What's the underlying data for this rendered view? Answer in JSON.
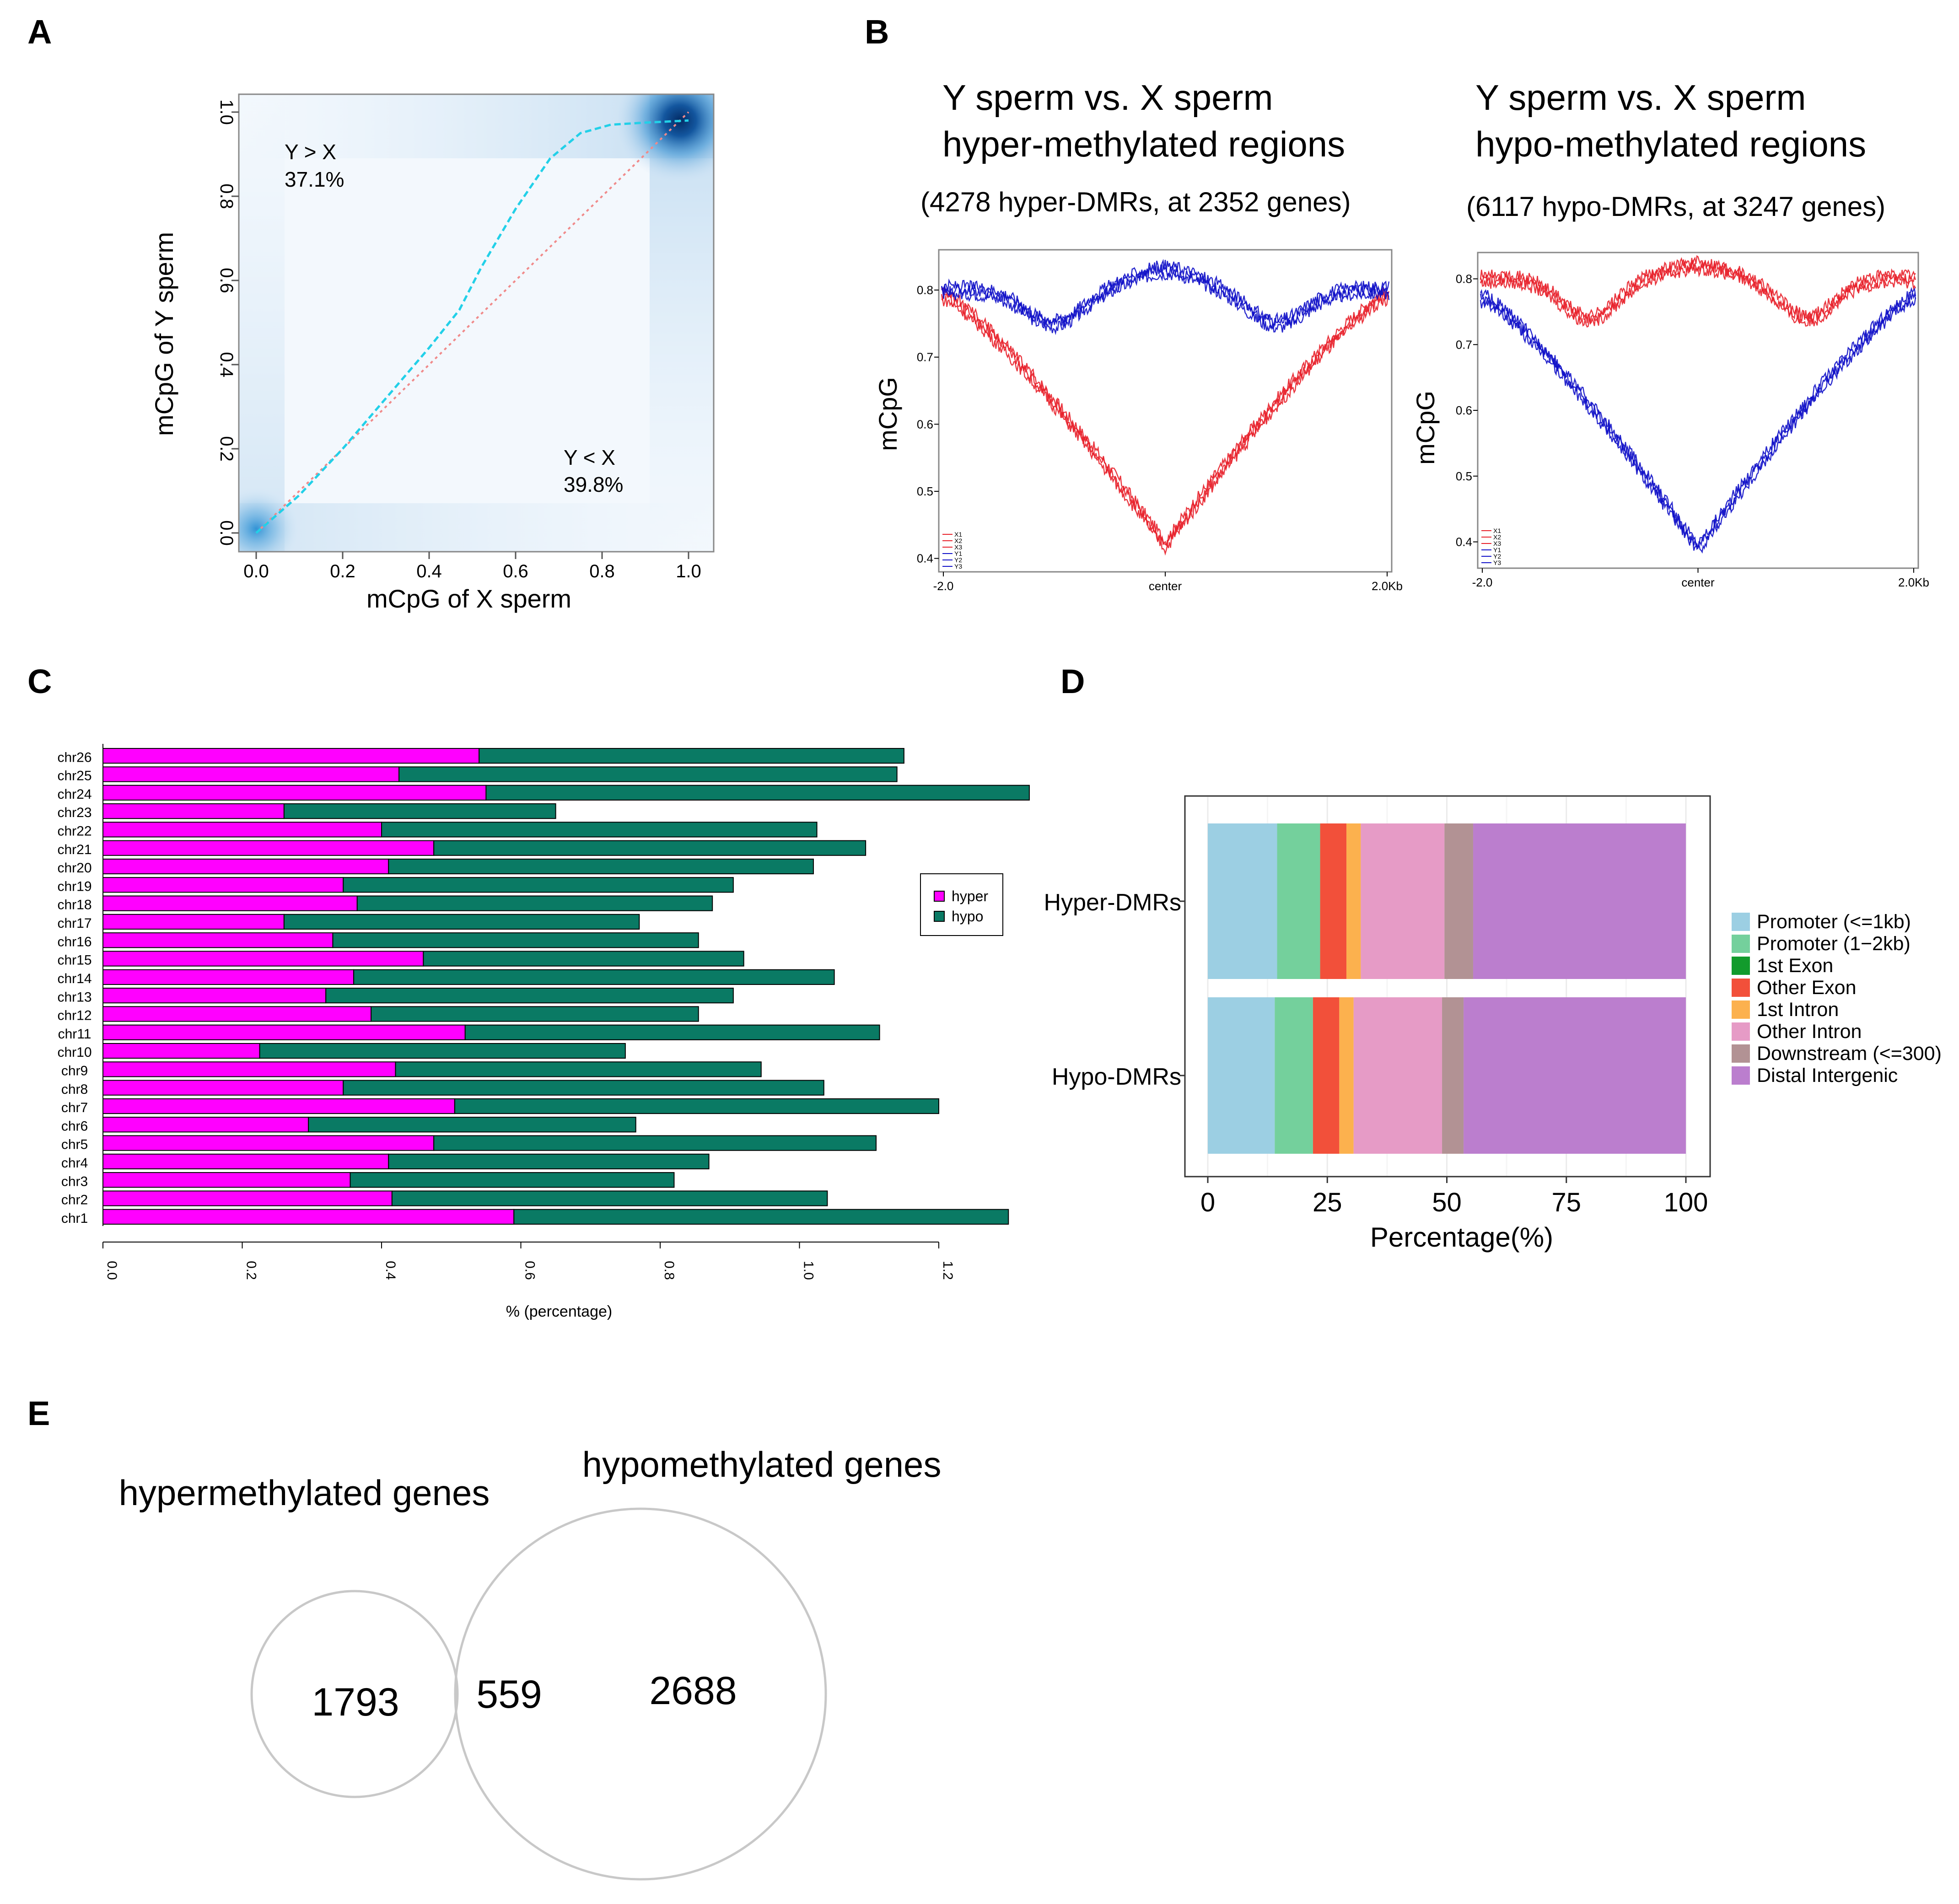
{
  "panels": {
    "A": {
      "label": "A"
    },
    "B": {
      "label": "B"
    },
    "C": {
      "label": "C"
    },
    "D": {
      "label": "D"
    },
    "E": {
      "label": "E"
    }
  },
  "chart_data": [
    {
      "panel": "A",
      "type": "heatmap",
      "title": "",
      "xlabel": "mCpG of X sperm",
      "ylabel": "mCpG of Y sperm",
      "xlim": [
        0,
        1
      ],
      "ylim": [
        0,
        1
      ],
      "xticks": [
        "0.0",
        "0.2",
        "0.4",
        "0.6",
        "0.8",
        "1.0"
      ],
      "yticks": [
        "0.0",
        "0.2",
        "0.4",
        "0.6",
        "0.8",
        "1.0"
      ],
      "annotations": [
        {
          "name": "y-greater-x",
          "line1": "Y > X",
          "line2": "37.1%"
        },
        {
          "name": "y-less-x",
          "line1": "Y < X",
          "line2": "39.8%"
        }
      ],
      "density_hotspots": [
        {
          "x": 0.98,
          "y": 0.98,
          "strength": 1.0
        },
        {
          "x": 0.0,
          "y": 0.01,
          "strength": 0.55
        }
      ],
      "smooth_curve": {
        "x": [
          0,
          0.1,
          0.2,
          0.3,
          0.4,
          0.47,
          0.52,
          0.6,
          0.68,
          0.75,
          0.82,
          0.9,
          1.0
        ],
        "y": [
          0,
          0.09,
          0.2,
          0.32,
          0.44,
          0.53,
          0.63,
          0.77,
          0.89,
          0.95,
          0.97,
          0.975,
          0.98
        ]
      },
      "identity_line": {
        "x": [
          0,
          1
        ],
        "y": [
          0,
          1
        ]
      }
    },
    {
      "panel": "B1",
      "type": "line",
      "title_line1": "Y sperm vs. X sperm",
      "title_line2": "hyper-methylated regions",
      "subtitle": "(4278 hyper-DMRs, at 2352 genes)",
      "ylabel": "mCpG",
      "ylim": [
        0.38,
        0.86
      ],
      "yticks": [
        "0.4",
        "0.5",
        "0.6",
        "0.7",
        "0.8"
      ],
      "xticks": [
        "-2.0",
        "center",
        "2.0Kb"
      ],
      "legend": [
        "X1",
        "X2",
        "X3",
        "Y1",
        "Y2",
        "Y3"
      ],
      "series": [
        {
          "name": "X",
          "color": "#e8202a",
          "profile": "valley",
          "edge": 0.79,
          "center": 0.42
        },
        {
          "name": "Y",
          "color": "#1010c8",
          "profile": "bump",
          "edge": 0.8,
          "center": 0.83,
          "trough": 0.75
        }
      ]
    },
    {
      "panel": "B2",
      "type": "line",
      "title_line1": "Y sperm vs. X sperm",
      "title_line2": "hypo-methylated regions",
      "subtitle": "(6117 hypo-DMRs, at 3247 genes)",
      "ylabel": "mCpG",
      "ylim": [
        0.36,
        0.84
      ],
      "yticks": [
        "0.4",
        "0.5",
        "0.6",
        "0.7",
        "0.8"
      ],
      "xticks": [
        "-2.0",
        "center",
        "2.0Kb"
      ],
      "legend": [
        "X1",
        "X2",
        "X3",
        "Y1",
        "Y2",
        "Y3"
      ],
      "series": [
        {
          "name": "X",
          "color": "#e8202a",
          "profile": "bump",
          "edge": 0.8,
          "center": 0.82,
          "trough": 0.74
        },
        {
          "name": "Y",
          "color": "#1010c8",
          "profile": "valley",
          "edge": 0.77,
          "center": 0.39
        }
      ]
    },
    {
      "panel": "C",
      "type": "bar",
      "orientation": "horizontal",
      "stacked": true,
      "xlabel": "% (percentage)",
      "xlim": [
        0,
        1.32
      ],
      "xticks": [
        "0.0",
        "0.2",
        "0.4",
        "0.6",
        "0.8",
        "1.0",
        "1.2"
      ],
      "legend": [
        "hyper",
        "hypo"
      ],
      "colors": {
        "hyper": "#ff00ff",
        "hypo": "#0a7a64"
      },
      "categories": [
        "chr26",
        "chr25",
        "chr24",
        "chr23",
        "chr22",
        "chr21",
        "chr20",
        "chr19",
        "chr18",
        "chr17",
        "chr16",
        "chr15",
        "chr14",
        "chr13",
        "chr12",
        "chr11",
        "chr10",
        "chr9",
        "chr8",
        "chr7",
        "chr6",
        "chr5",
        "chr4",
        "chr3",
        "chr2",
        "chr1"
      ],
      "series": [
        {
          "name": "hyper",
          "values": [
            0.54,
            0.425,
            0.55,
            0.26,
            0.4,
            0.475,
            0.41,
            0.345,
            0.365,
            0.26,
            0.33,
            0.46,
            0.36,
            0.32,
            0.385,
            0.52,
            0.225,
            0.42,
            0.345,
            0.505,
            0.295,
            0.475,
            0.41,
            0.355,
            0.415,
            0.59
          ]
        },
        {
          "name": "hypo",
          "values": [
            0.61,
            0.715,
            0.78,
            0.39,
            0.625,
            0.62,
            0.61,
            0.56,
            0.51,
            0.51,
            0.525,
            0.46,
            0.69,
            0.585,
            0.47,
            0.595,
            0.525,
            0.525,
            0.69,
            0.695,
            0.47,
            0.635,
            0.46,
            0.465,
            0.625,
            0.71
          ]
        }
      ]
    },
    {
      "panel": "D",
      "type": "bar",
      "orientation": "horizontal",
      "stacked": true,
      "xlabel": "Percentage(%)",
      "xlim": [
        0,
        100
      ],
      "xticks": [
        "0",
        "25",
        "50",
        "75",
        "100"
      ],
      "categories": [
        "Hyper-DMRs",
        "Hypo-DMRs"
      ],
      "legend": [
        "Promoter (<=1kb)",
        "Promoter (1−2kb)",
        "1st Exon",
        "Other Exon",
        "1st Intron",
        "Other Intron",
        "Downstream (<=300)",
        "Distal Intergenic"
      ],
      "colors": [
        "#9ccfe3",
        "#74d09c",
        "#129b2c",
        "#f2503a",
        "#fcb14e",
        "#e69bc6",
        "#b29294",
        "#bb7ece"
      ],
      "series": [
        {
          "name": "Promoter (<=1kb)",
          "values": [
            14.5,
            14.0
          ]
        },
        {
          "name": "Promoter (1−2kb)",
          "values": [
            9.0,
            8.0
          ]
        },
        {
          "name": "1st Exon",
          "values": [
            0.0,
            0.0
          ]
        },
        {
          "name": "Other Exon",
          "values": [
            5.5,
            5.5
          ]
        },
        {
          "name": "1st Intron",
          "values": [
            3.0,
            3.0
          ]
        },
        {
          "name": "Other Intron",
          "values": [
            17.5,
            18.5
          ]
        },
        {
          "name": "Downstream (<=300)",
          "values": [
            6.0,
            4.5
          ]
        },
        {
          "name": "Distal Intergenic",
          "values": [
            44.5,
            46.5
          ]
        }
      ]
    },
    {
      "panel": "E",
      "type": "venn",
      "sets": [
        {
          "name": "hypermethylated genes",
          "only": "1793"
        },
        {
          "name": "hypomethylated genes",
          "only": "2688"
        }
      ],
      "intersection": "559"
    }
  ]
}
